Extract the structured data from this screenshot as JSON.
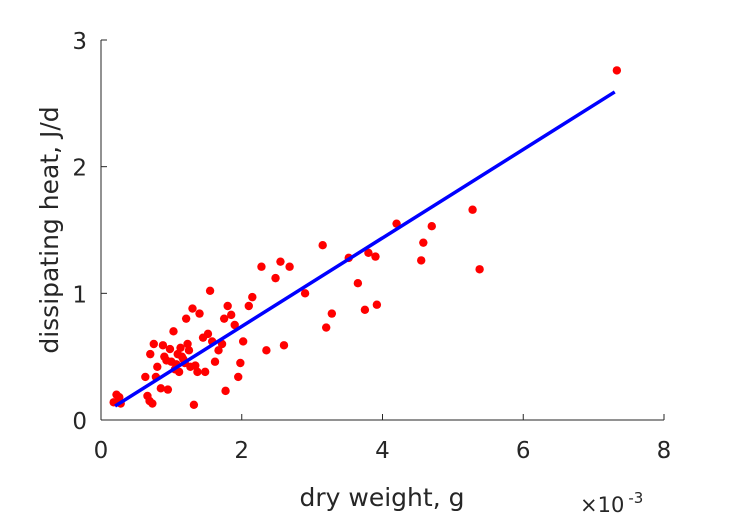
{
  "chart_data": {
    "type": "scatter",
    "xlabel": "dry weight, g",
    "ylabel": "dissipating heat, J/d",
    "x_exponent_base": "×10",
    "x_exponent_power": "-3",
    "xlim": [
      0,
      0.008
    ],
    "ylim": [
      0,
      3
    ],
    "xticks": [
      0,
      0.002,
      0.004,
      0.006,
      0.008
    ],
    "xtick_labels": [
      "0",
      "2",
      "4",
      "6",
      "8"
    ],
    "yticks": [
      0,
      1,
      2,
      3
    ],
    "ytick_labels": [
      "0",
      "1",
      "2",
      "3"
    ],
    "grid": false,
    "series": [
      {
        "kind": "scatter",
        "color": "#ff0000",
        "points": [
          [
            0.00018,
            0.14
          ],
          [
            0.00022,
            0.2
          ],
          [
            0.00026,
            0.18
          ],
          [
            0.00028,
            0.13
          ],
          [
            0.00063,
            0.34
          ],
          [
            0.00066,
            0.19
          ],
          [
            0.00069,
            0.15
          ],
          [
            0.00073,
            0.13
          ],
          [
            0.0007,
            0.52
          ],
          [
            0.00075,
            0.6
          ],
          [
            0.00078,
            0.34
          ],
          [
            0.0008,
            0.42
          ],
          [
            0.00085,
            0.25
          ],
          [
            0.00088,
            0.59
          ],
          [
            0.0009,
            0.5
          ],
          [
            0.00093,
            0.47
          ],
          [
            0.00095,
            0.24
          ],
          [
            0.00098,
            0.56
          ],
          [
            0.001,
            0.46
          ],
          [
            0.00103,
            0.7
          ],
          [
            0.00105,
            0.4
          ],
          [
            0.00107,
            0.44
          ],
          [
            0.00109,
            0.52
          ],
          [
            0.00111,
            0.38
          ],
          [
            0.00113,
            0.57
          ],
          [
            0.00115,
            0.5
          ],
          [
            0.00117,
            0.48
          ],
          [
            0.00119,
            0.45
          ],
          [
            0.00121,
            0.8
          ],
          [
            0.00123,
            0.6
          ],
          [
            0.00125,
            0.55
          ],
          [
            0.00127,
            0.42
          ],
          [
            0.0013,
            0.88
          ],
          [
            0.00132,
            0.12
          ],
          [
            0.00134,
            0.43
          ],
          [
            0.00137,
            0.38
          ],
          [
            0.0014,
            0.84
          ],
          [
            0.00145,
            0.65
          ],
          [
            0.00148,
            0.38
          ],
          [
            0.00152,
            0.68
          ],
          [
            0.00155,
            1.02
          ],
          [
            0.00158,
            0.62
          ],
          [
            0.00162,
            0.46
          ],
          [
            0.00167,
            0.55
          ],
          [
            0.00172,
            0.6
          ],
          [
            0.00175,
            0.8
          ],
          [
            0.00177,
            0.23
          ],
          [
            0.0018,
            0.9
          ],
          [
            0.00185,
            0.83
          ],
          [
            0.0019,
            0.75
          ],
          [
            0.00195,
            0.34
          ],
          [
            0.00198,
            0.45
          ],
          [
            0.00202,
            0.62
          ],
          [
            0.0021,
            0.9
          ],
          [
            0.00215,
            0.97
          ],
          [
            0.00228,
            1.21
          ],
          [
            0.00235,
            0.55
          ],
          [
            0.00248,
            1.12
          ],
          [
            0.00255,
            1.25
          ],
          [
            0.0026,
            0.59
          ],
          [
            0.00268,
            1.21
          ],
          [
            0.0029,
            1.0
          ],
          [
            0.00315,
            1.38
          ],
          [
            0.0032,
            0.73
          ],
          [
            0.00328,
            0.84
          ],
          [
            0.00352,
            1.28
          ],
          [
            0.00365,
            1.08
          ],
          [
            0.00375,
            0.87
          ],
          [
            0.0038,
            1.32
          ],
          [
            0.0039,
            1.29
          ],
          [
            0.00392,
            0.91
          ],
          [
            0.0042,
            1.55
          ],
          [
            0.00455,
            1.26
          ],
          [
            0.00458,
            1.4
          ],
          [
            0.0047,
            1.53
          ],
          [
            0.00528,
            1.66
          ],
          [
            0.00538,
            1.19
          ],
          [
            0.00733,
            2.76
          ]
        ]
      },
      {
        "kind": "line",
        "color": "#0000ff",
        "x": [
          0.0002,
          0.0073
        ],
        "y": [
          0.11,
          2.59
        ]
      }
    ]
  }
}
